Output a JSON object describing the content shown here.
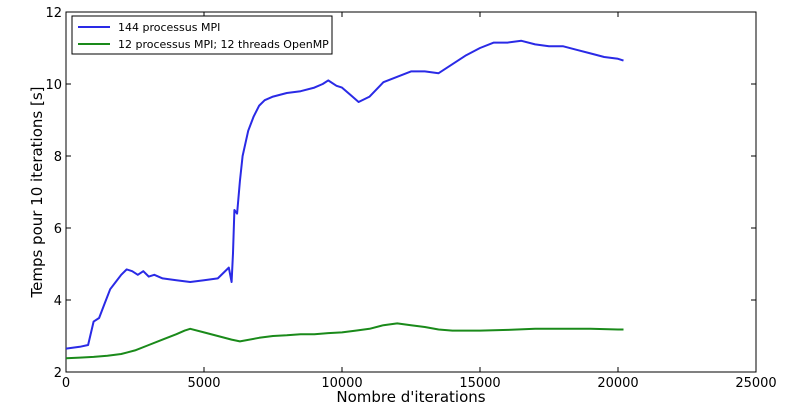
{
  "chart_data": {
    "type": "line",
    "title": "",
    "xlabel": "Nombre d'iterations",
    "ylabel": "Temps pour 10 iterations [s]",
    "xlim": [
      0,
      25000
    ],
    "ylim": [
      2,
      12
    ],
    "xticks": [
      0,
      5000,
      10000,
      15000,
      20000,
      25000
    ],
    "yticks": [
      2,
      4,
      6,
      8,
      10,
      12
    ],
    "grid": false,
    "legend_position": "top-left",
    "series": [
      {
        "name": "144 processus MPI",
        "color": "#2a2ae6",
        "x": [
          0,
          500,
          800,
          1000,
          1200,
          1400,
          1600,
          1800,
          2000,
          2200,
          2400,
          2600,
          2800,
          3000,
          3200,
          3500,
          4000,
          4500,
          5000,
          5500,
          5900,
          6000,
          6050,
          6100,
          6200,
          6300,
          6400,
          6600,
          6800,
          7000,
          7200,
          7500,
          8000,
          8500,
          9000,
          9300,
          9500,
          9800,
          10000,
          10300,
          10600,
          11000,
          11500,
          12000,
          12500,
          13000,
          13500,
          14000,
          14500,
          15000,
          15500,
          16000,
          16500,
          17000,
          17500,
          18000,
          18500,
          19000,
          19500,
          20000,
          20200
        ],
        "y": [
          2.65,
          2.7,
          2.75,
          3.4,
          3.5,
          3.9,
          4.3,
          4.5,
          4.7,
          4.85,
          4.8,
          4.7,
          4.8,
          4.65,
          4.7,
          4.6,
          4.55,
          4.5,
          4.55,
          4.6,
          4.9,
          4.5,
          5.3,
          6.5,
          6.4,
          7.3,
          8.0,
          8.7,
          9.1,
          9.4,
          9.55,
          9.65,
          9.75,
          9.8,
          9.9,
          10.0,
          10.1,
          9.95,
          9.9,
          9.7,
          9.5,
          9.65,
          10.05,
          10.2,
          10.35,
          10.35,
          10.3,
          10.55,
          10.8,
          11.0,
          11.15,
          11.15,
          11.2,
          11.1,
          11.05,
          11.05,
          10.95,
          10.85,
          10.75,
          10.7,
          10.65
        ]
      },
      {
        "name": "12 processus MPI; 12 threads OpenMP",
        "color": "#1a8a1a",
        "x": [
          0,
          500,
          1000,
          1500,
          2000,
          2500,
          3000,
          3500,
          4000,
          4300,
          4500,
          5000,
          5500,
          6000,
          6300,
          7000,
          7500,
          8000,
          8500,
          9000,
          9500,
          10000,
          10500,
          11000,
          11500,
          12000,
          12500,
          13000,
          13500,
          14000,
          15000,
          16000,
          17000,
          18000,
          19000,
          20000,
          20200
        ],
        "y": [
          2.38,
          2.4,
          2.42,
          2.45,
          2.5,
          2.6,
          2.75,
          2.9,
          3.05,
          3.15,
          3.2,
          3.1,
          3.0,
          2.9,
          2.85,
          2.95,
          3.0,
          3.02,
          3.05,
          3.05,
          3.08,
          3.1,
          3.15,
          3.2,
          3.3,
          3.35,
          3.3,
          3.25,
          3.18,
          3.15,
          3.15,
          3.17,
          3.2,
          3.2,
          3.2,
          3.18,
          3.18
        ]
      }
    ]
  }
}
